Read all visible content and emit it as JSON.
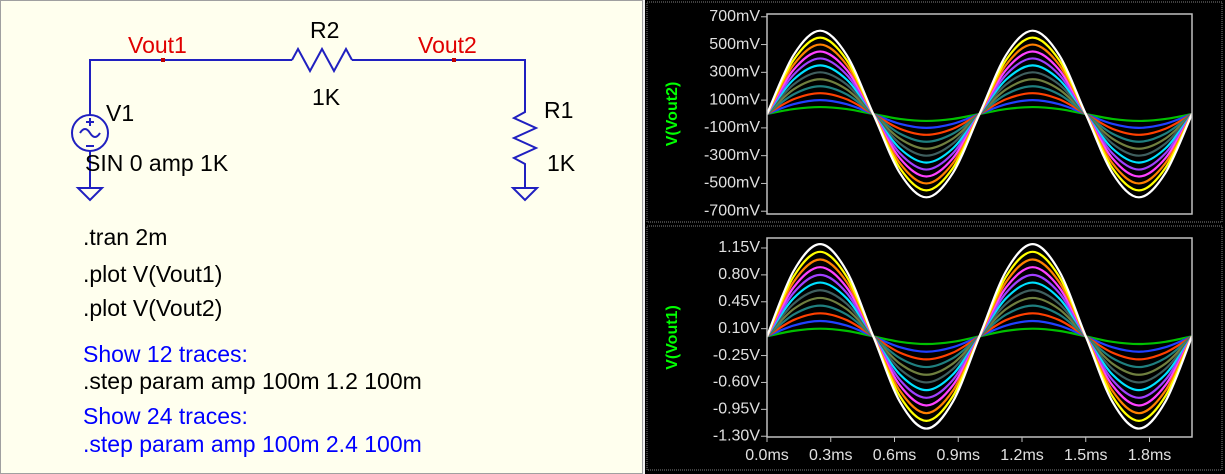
{
  "schematic": {
    "net_labels": [
      "Vout1",
      "Vout2"
    ],
    "components": [
      {
        "name": "R2",
        "value": "1K"
      },
      {
        "name": "V1",
        "value": "SIN 0 amp 1K"
      },
      {
        "name": "R1",
        "value": "1K"
      }
    ]
  },
  "directives": [
    {
      "text": ".tran 2m",
      "color": "#000000"
    },
    {
      "text": ".plot V(Vout1)",
      "color": "#000000"
    },
    {
      "text": ".plot V(Vout2)",
      "color": "#000000"
    },
    {
      "text": "Show 12 traces:",
      "color": "#0000ff"
    },
    {
      "text": ".step param amp 100m 1.2 100m",
      "color": "#000000"
    },
    {
      "text": "Show 24 traces:",
      "color": "#0000ff"
    },
    {
      "text": ".step param amp 100m 2.4 100m",
      "color": "#0000ff"
    }
  ],
  "chart_data": [
    {
      "type": "line",
      "ylabel": "V(Vout2)",
      "x": [
        0,
        0.125,
        0.25,
        0.375,
        0.5,
        0.625,
        0.75,
        0.875,
        1,
        1.125,
        1.25,
        1.375,
        1.5,
        1.625,
        1.75,
        1.875,
        2
      ],
      "xlim": [
        0,
        2
      ],
      "ylim": [
        -720,
        720
      ],
      "yticks": [
        {
          "value": 700,
          "label": "700mV"
        },
        {
          "value": 500,
          "label": "500mV"
        },
        {
          "value": 300,
          "label": "300mV"
        },
        {
          "value": 100,
          "label": "100mV"
        },
        {
          "value": -100,
          "label": "-100mV"
        },
        {
          "value": -300,
          "label": "-300mV"
        },
        {
          "value": -500,
          "label": "-500mV"
        },
        {
          "value": -700,
          "label": "-700mV"
        }
      ],
      "series": [
        {
          "color": "#00c000",
          "values": [
            0,
            35.4,
            50,
            35.4,
            0,
            -35.4,
            -50,
            -35.4,
            0,
            35.4,
            50,
            35.4,
            0,
            -35.4,
            -50,
            -35.4,
            0
          ]
        },
        {
          "color": "#2040ff",
          "values": [
            0,
            70.7,
            100,
            70.7,
            0,
            -70.7,
            -100,
            -70.7,
            0,
            70.7,
            100,
            70.7,
            0,
            -70.7,
            -100,
            -70.7,
            0
          ]
        },
        {
          "color": "#ff4000",
          "values": [
            0,
            106.1,
            150,
            106.1,
            0,
            -106.1,
            -150,
            -106.1,
            0,
            106.1,
            150,
            106.1,
            0,
            -106.1,
            -150,
            -106.1,
            0
          ]
        },
        {
          "color": "#1f7f7f",
          "values": [
            0,
            141.4,
            200,
            141.4,
            0,
            -141.4,
            -200,
            -141.4,
            0,
            141.4,
            200,
            141.4,
            0,
            -141.4,
            -200,
            -141.4,
            0
          ]
        },
        {
          "color": "#6f7f3f",
          "values": [
            0,
            176.8,
            250,
            176.8,
            0,
            -176.8,
            -250,
            -176.8,
            0,
            176.8,
            250,
            176.8,
            0,
            -176.8,
            -250,
            -176.8,
            0
          ]
        },
        {
          "color": "#3f5f5f",
          "values": [
            0,
            212.1,
            300,
            212.1,
            0,
            -212.1,
            -300,
            -212.1,
            0,
            212.1,
            300,
            212.1,
            0,
            -212.1,
            -300,
            -212.1,
            0
          ]
        },
        {
          "color": "#00e0ff",
          "values": [
            0,
            247.5,
            350,
            247.5,
            0,
            -247.5,
            -350,
            -247.5,
            0,
            247.5,
            350,
            247.5,
            0,
            -247.5,
            -350,
            -247.5,
            0
          ]
        },
        {
          "color": "#a040ff",
          "values": [
            0,
            282.8,
            400,
            282.8,
            0,
            -282.8,
            -400,
            -282.8,
            0,
            282.8,
            400,
            282.8,
            0,
            -282.8,
            -400,
            -282.8,
            0
          ]
        },
        {
          "color": "#ff40ff",
          "values": [
            0,
            318.2,
            450,
            318.2,
            0,
            -318.2,
            -450,
            -318.2,
            0,
            318.2,
            450,
            318.2,
            0,
            -318.2,
            -450,
            -318.2,
            0
          ]
        },
        {
          "color": "#ff8000",
          "values": [
            0,
            353.6,
            500,
            353.6,
            0,
            -353.6,
            -500,
            -353.6,
            0,
            353.6,
            500,
            353.6,
            0,
            -353.6,
            -500,
            -353.6,
            0
          ]
        },
        {
          "color": "#ffff00",
          "values": [
            0,
            388.9,
            550,
            388.9,
            0,
            -388.9,
            -550,
            -388.9,
            0,
            388.9,
            550,
            388.9,
            0,
            -388.9,
            -550,
            -388.9,
            0
          ]
        },
        {
          "color": "#ffffff",
          "values": [
            0,
            424.3,
            600,
            424.3,
            0,
            -424.3,
            -600,
            -424.3,
            0,
            424.3,
            600,
            424.3,
            0,
            -424.3,
            -600,
            -424.3,
            0
          ]
        }
      ]
    },
    {
      "type": "line",
      "ylabel": "V(Vout1)",
      "x": [
        0,
        0.125,
        0.25,
        0.375,
        0.5,
        0.625,
        0.75,
        0.875,
        1,
        1.125,
        1.25,
        1.375,
        1.5,
        1.625,
        1.75,
        1.875,
        2
      ],
      "xlim": [
        0,
        2
      ],
      "ylim": [
        -1.31,
        1.28
      ],
      "xticks": [
        {
          "value": 0,
          "label": "0.0ms"
        },
        {
          "value": 0.3,
          "label": "0.3ms"
        },
        {
          "value": 0.6,
          "label": "0.6ms"
        },
        {
          "value": 0.9,
          "label": "0.9ms"
        },
        {
          "value": 1.2,
          "label": "1.2ms"
        },
        {
          "value": 1.5,
          "label": "1.5ms"
        },
        {
          "value": 1.8,
          "label": "1.8ms"
        }
      ],
      "yticks": [
        {
          "value": 1.15,
          "label": "1.15V"
        },
        {
          "value": 0.8,
          "label": "0.80V"
        },
        {
          "value": 0.45,
          "label": "0.45V"
        },
        {
          "value": 0.1,
          "label": "0.10V"
        },
        {
          "value": -0.25,
          "label": "-0.25V"
        },
        {
          "value": -0.6,
          "label": "-0.60V"
        },
        {
          "value": -0.95,
          "label": "-0.95V"
        },
        {
          "value": -1.3,
          "label": "-1.30V"
        }
      ],
      "series": [
        {
          "color": "#00c000",
          "values": [
            0,
            0.071,
            0.1,
            0.071,
            0,
            -0.071,
            -0.1,
            -0.071,
            0,
            0.071,
            0.1,
            0.071,
            0,
            -0.071,
            -0.1,
            -0.071,
            0
          ]
        },
        {
          "color": "#2040ff",
          "values": [
            0,
            0.141,
            0.2,
            0.141,
            0,
            -0.141,
            -0.2,
            -0.141,
            0,
            0.141,
            0.2,
            0.141,
            0,
            -0.141,
            -0.2,
            -0.141,
            0
          ]
        },
        {
          "color": "#ff4000",
          "values": [
            0,
            0.212,
            0.3,
            0.212,
            0,
            -0.212,
            -0.3,
            -0.212,
            0,
            0.212,
            0.3,
            0.212,
            0,
            -0.212,
            -0.3,
            -0.212,
            0
          ]
        },
        {
          "color": "#1f7f7f",
          "values": [
            0,
            0.283,
            0.4,
            0.283,
            0,
            -0.283,
            -0.4,
            -0.283,
            0,
            0.283,
            0.4,
            0.283,
            0,
            -0.283,
            -0.4,
            -0.283,
            0
          ]
        },
        {
          "color": "#6f7f3f",
          "values": [
            0,
            0.354,
            0.5,
            0.354,
            0,
            -0.354,
            -0.5,
            -0.354,
            0,
            0.354,
            0.5,
            0.354,
            0,
            -0.354,
            -0.5,
            -0.354,
            0
          ]
        },
        {
          "color": "#3f5f5f",
          "values": [
            0,
            0.424,
            0.6,
            0.424,
            0,
            -0.424,
            -0.6,
            -0.424,
            0,
            0.424,
            0.6,
            0.424,
            0,
            -0.424,
            -0.6,
            -0.424,
            0
          ]
        },
        {
          "color": "#00e0ff",
          "values": [
            0,
            0.495,
            0.7,
            0.495,
            0,
            -0.495,
            -0.7,
            -0.495,
            0,
            0.495,
            0.7,
            0.495,
            0,
            -0.495,
            -0.7,
            -0.495,
            0
          ]
        },
        {
          "color": "#a040ff",
          "values": [
            0,
            0.566,
            0.8,
            0.566,
            0,
            -0.566,
            -0.8,
            -0.566,
            0,
            0.566,
            0.8,
            0.566,
            0,
            -0.566,
            -0.8,
            -0.566,
            0
          ]
        },
        {
          "color": "#ff40ff",
          "values": [
            0,
            0.636,
            0.9,
            0.636,
            0,
            -0.636,
            -0.9,
            -0.636,
            0,
            0.636,
            0.9,
            0.636,
            0,
            -0.636,
            -0.9,
            -0.636,
            0
          ]
        },
        {
          "color": "#ff8000",
          "values": [
            0,
            0.707,
            1,
            0.707,
            0,
            -0.707,
            -1,
            -0.707,
            0,
            0.707,
            1,
            0.707,
            0,
            -0.707,
            -1,
            -0.707,
            0
          ]
        },
        {
          "color": "#ffff00",
          "values": [
            0,
            0.778,
            1.1,
            0.778,
            0,
            -0.778,
            -1.1,
            -0.778,
            0,
            0.778,
            1.1,
            0.778,
            0,
            -0.778,
            -1.1,
            -0.778,
            0
          ]
        },
        {
          "color": "#ffffff",
          "values": [
            0,
            0.849,
            1.2,
            0.849,
            0,
            -0.849,
            -1.2,
            -0.849,
            0,
            0.849,
            1.2,
            0.849,
            0,
            -0.849,
            -1.2,
            -0.849,
            0
          ]
        }
      ]
    }
  ]
}
